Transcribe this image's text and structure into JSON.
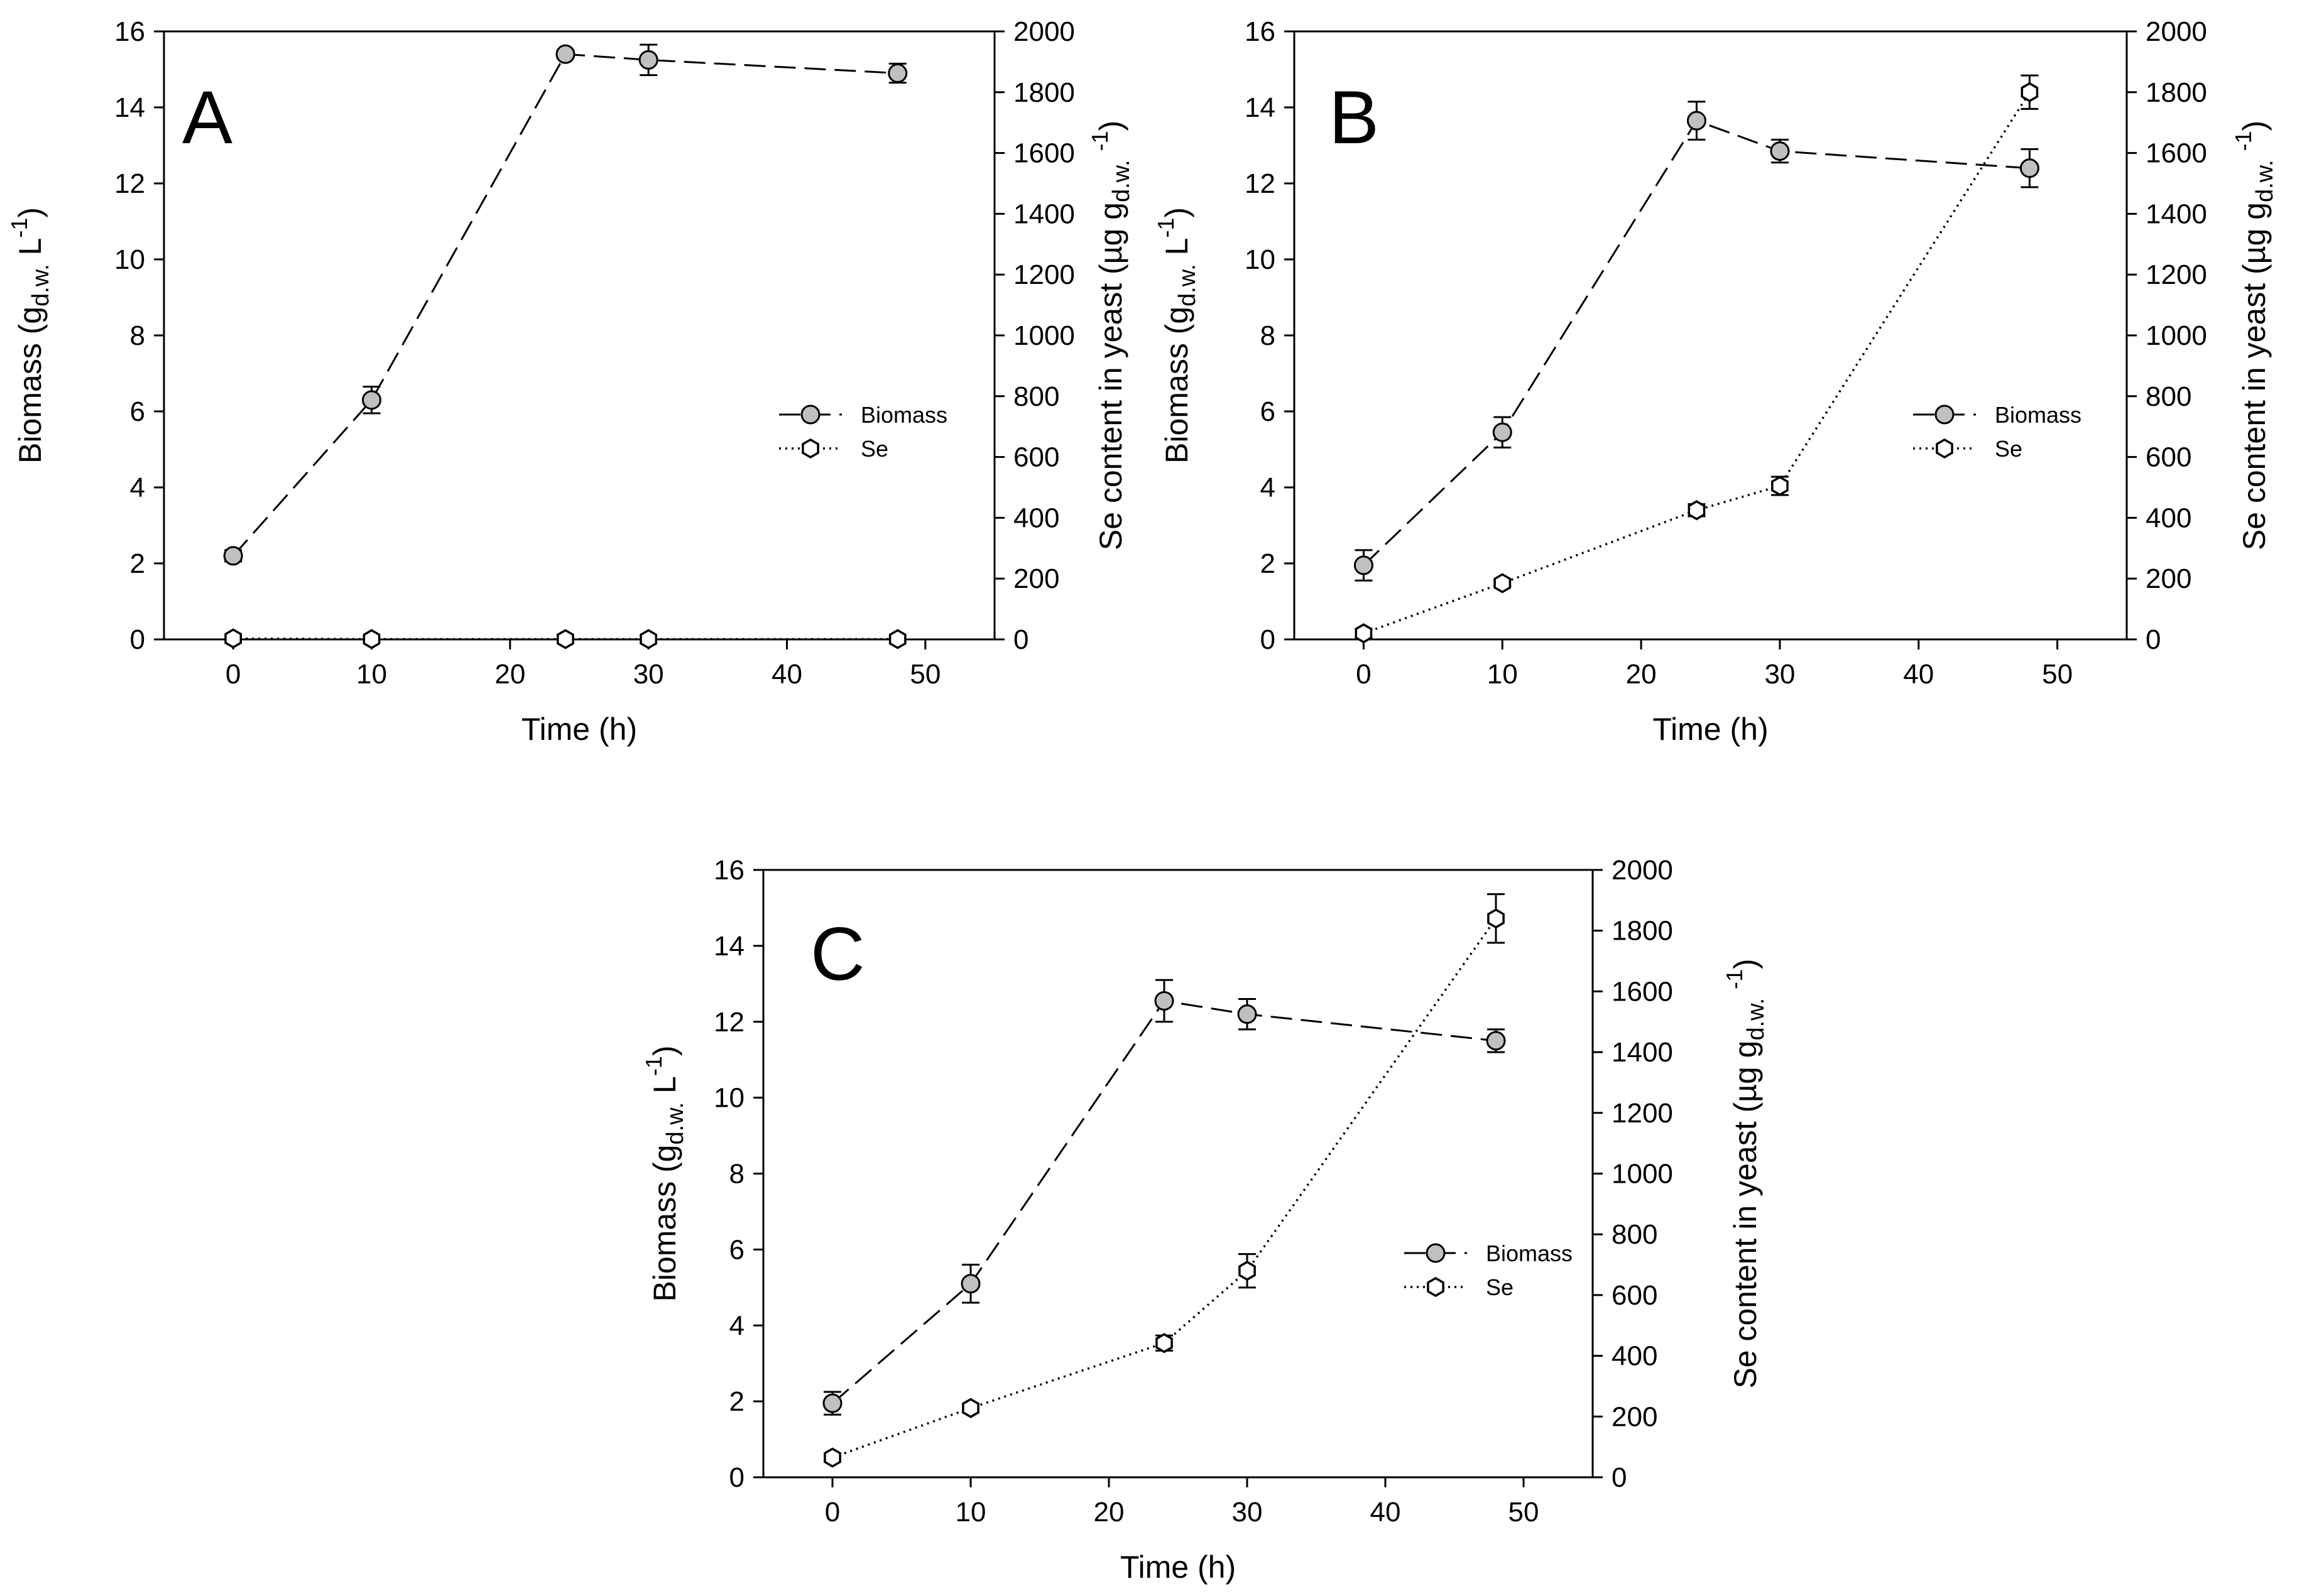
{
  "chart_data": [
    {
      "type": "line",
      "panel_label": "A",
      "xlabel": "Time (h)",
      "ylabel_left": "Biomass (g",
      "ylabel_left_sub": "d.w.",
      "ylabel_left_unit": " L",
      "ylabel_left_sup": "-1",
      "ylabel_right": "Se content in yeast (µg g",
      "ylabel_right_sub": "d.w.",
      "ylabel_right_sup": "-1",
      "xlim": [
        -5,
        55
      ],
      "xticks": [
        "0",
        "10",
        "20",
        "30",
        "40",
        "50"
      ],
      "ylim_left": [
        0,
        16
      ],
      "yticks_left": [
        "0",
        "2",
        "4",
        "6",
        "8",
        "10",
        "12",
        "14",
        "16"
      ],
      "ylim_right": [
        0,
        2000
      ],
      "yticks_right": [
        "0",
        "200",
        "400",
        "600",
        "800",
        "1000",
        "1200",
        "1400",
        "1600",
        "1800",
        "2000"
      ],
      "legend_position": "center-right",
      "series": [
        {
          "name": "Biomass",
          "axis": "left",
          "color": "#c0c0c0",
          "x": [
            0,
            10,
            24,
            30,
            48
          ],
          "y": [
            2.2,
            6.3,
            15.4,
            15.25,
            14.9
          ],
          "err": [
            0.15,
            0.35,
            0.1,
            0.4,
            0.25
          ]
        },
        {
          "name": "Se",
          "axis": "right",
          "color": "#ffffff",
          "x": [
            0,
            10,
            24,
            30,
            48
          ],
          "y": [
            3,
            1,
            1,
            1,
            1
          ],
          "err": [
            0,
            0,
            0,
            0,
            0
          ]
        }
      ]
    },
    {
      "type": "line",
      "panel_label": "B",
      "xlabel": "Time (h)",
      "ylabel_left": "Biomass (g",
      "ylabel_left_sub": "d.w.",
      "ylabel_left_unit": " L",
      "ylabel_left_sup": "-1",
      "ylabel_right": "Se content in yeast (µg g",
      "ylabel_right_sub": "d.w.",
      "ylabel_right_sup": "-1",
      "xlim": [
        -5,
        55
      ],
      "xticks": [
        "0",
        "10",
        "20",
        "30",
        "40",
        "50"
      ],
      "ylim_left": [
        0,
        16
      ],
      "yticks_left": [
        "0",
        "2",
        "4",
        "6",
        "8",
        "10",
        "12",
        "14",
        "16"
      ],
      "ylim_right": [
        0,
        2000
      ],
      "yticks_right": [
        "0",
        "200",
        "400",
        "600",
        "800",
        "1000",
        "1200",
        "1400",
        "1600",
        "1800",
        "2000"
      ],
      "legend_position": "center-right",
      "series": [
        {
          "name": "Biomass",
          "axis": "left",
          "color": "#c0c0c0",
          "x": [
            0,
            10,
            24,
            30,
            48
          ],
          "y": [
            1.95,
            5.45,
            13.65,
            12.85,
            12.4
          ],
          "err": [
            0.4,
            0.4,
            0.5,
            0.3,
            0.5
          ]
        },
        {
          "name": "Se",
          "axis": "right",
          "color": "#ffffff",
          "x": [
            0,
            10,
            24,
            30,
            48
          ],
          "y": [
            20,
            185,
            425,
            505,
            1800
          ],
          "err": [
            15,
            10,
            20,
            30,
            55
          ]
        }
      ]
    },
    {
      "type": "line",
      "panel_label": "C",
      "xlabel": "Time (h)",
      "ylabel_left": "Biomass (g",
      "ylabel_left_sub": "d.w.",
      "ylabel_left_unit": " L",
      "ylabel_left_sup": "-1",
      "ylabel_right": "Se content in yeast (µg g",
      "ylabel_right_sub": "d.w.",
      "ylabel_right_sup": "-1",
      "xlim": [
        -5,
        55
      ],
      "xticks": [
        "0",
        "10",
        "20",
        "30",
        "40",
        "50"
      ],
      "ylim_left": [
        0,
        16
      ],
      "yticks_left": [
        "0",
        "2",
        "4",
        "6",
        "8",
        "10",
        "12",
        "14",
        "16"
      ],
      "ylim_right": [
        0,
        2000
      ],
      "yticks_right": [
        "0",
        "200",
        "400",
        "600",
        "800",
        "1000",
        "1200",
        "1400",
        "1600",
        "1800",
        "2000"
      ],
      "legend_position": "center-right",
      "series": [
        {
          "name": "Biomass",
          "axis": "left",
          "color": "#c0c0c0",
          "x": [
            0,
            10,
            24,
            30,
            48
          ],
          "y": [
            1.95,
            5.1,
            12.55,
            12.2,
            11.5
          ],
          "err": [
            0.3,
            0.5,
            0.55,
            0.4,
            0.3
          ]
        },
        {
          "name": "Se",
          "axis": "right",
          "color": "#ffffff",
          "x": [
            0,
            10,
            24,
            30,
            48
          ],
          "y": [
            65,
            228,
            442,
            680,
            1840
          ],
          "err": [
            10,
            15,
            25,
            55,
            80
          ]
        }
      ]
    }
  ]
}
